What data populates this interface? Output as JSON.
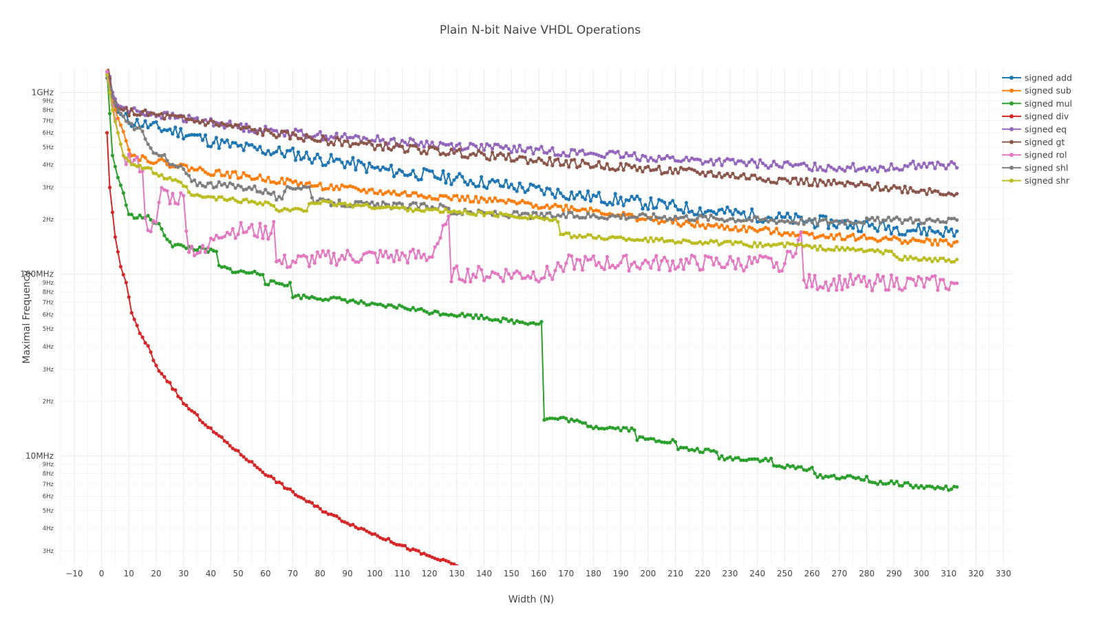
{
  "chart_data": {
    "type": "line",
    "title": "Plain N-bit Naive VHDL Operations",
    "xlabel": "Width (N)",
    "ylabel": "Maximal Frequency",
    "x_range": [
      -15,
      333
    ],
    "y_range_hz": [
      2500000,
      1350000000
    ],
    "y_scale": "log",
    "grid": "on",
    "legend_position": "top-right",
    "x_ticks": [
      "−10",
      "0",
      "10",
      "20",
      "30",
      "40",
      "50",
      "60",
      "70",
      "80",
      "90",
      "100",
      "110",
      "120",
      "130",
      "140",
      "150",
      "160",
      "170",
      "180",
      "190",
      "200",
      "210",
      "220",
      "230",
      "240",
      "250",
      "260",
      "270",
      "280",
      "290",
      "300",
      "310",
      "320",
      "330"
    ],
    "y_ticks": [
      {
        "v": 1000000000,
        "label": "1GHz",
        "major": true
      },
      {
        "v": 900000000,
        "label": "9Hz"
      },
      {
        "v": 800000000,
        "label": "8Hz"
      },
      {
        "v": 700000000,
        "label": "7Hz"
      },
      {
        "v": 600000000,
        "label": "6Hz"
      },
      {
        "v": 500000000,
        "label": "5Hz"
      },
      {
        "v": 400000000,
        "label": "4Hz"
      },
      {
        "v": 300000000,
        "label": "3Hz"
      },
      {
        "v": 200000000,
        "label": "2Hz"
      },
      {
        "v": 100000000,
        "label": "100MHz",
        "major": true
      },
      {
        "v": 90000000,
        "label": "9Hz"
      },
      {
        "v": 80000000,
        "label": "8Hz"
      },
      {
        "v": 70000000,
        "label": "7Hz"
      },
      {
        "v": 60000000,
        "label": "6Hz"
      },
      {
        "v": 50000000,
        "label": "5Hz"
      },
      {
        "v": 40000000,
        "label": "4Hz"
      },
      {
        "v": 30000000,
        "label": "3Hz"
      },
      {
        "v": 20000000,
        "label": "2Hz"
      },
      {
        "v": 10000000,
        "label": "10MHz",
        "major": true
      },
      {
        "v": 9000000,
        "label": "9Hz"
      },
      {
        "v": 8000000,
        "label": "8Hz"
      },
      {
        "v": 7000000,
        "label": "7Hz"
      },
      {
        "v": 6000000,
        "label": "6Hz"
      },
      {
        "v": 5000000,
        "label": "5Hz"
      },
      {
        "v": 4000000,
        "label": "4Hz"
      },
      {
        "v": 3000000,
        "label": "3Hz"
      }
    ],
    "series": [
      {
        "name": "signed add",
        "color": "#1f77b4",
        "noise": 0.035,
        "seed": 11,
        "points": [
          [
            2,
            1500000000
          ],
          [
            4,
            920000000
          ],
          [
            6,
            780000000
          ],
          [
            10,
            700000000
          ],
          [
            20,
            640000000
          ],
          [
            30,
            600000000
          ],
          [
            40,
            540000000
          ],
          [
            50,
            500000000
          ],
          [
            60,
            480000000
          ],
          [
            70,
            460000000
          ],
          [
            80,
            430000000
          ],
          [
            90,
            410000000
          ],
          [
            100,
            380000000
          ],
          [
            120,
            350000000
          ],
          [
            140,
            320000000
          ],
          [
            160,
            290000000
          ],
          [
            180,
            265000000
          ],
          [
            200,
            245000000
          ],
          [
            220,
            225000000
          ],
          [
            240,
            210000000
          ],
          [
            260,
            195000000
          ],
          [
            280,
            185000000
          ],
          [
            300,
            175000000
          ],
          [
            313,
            170000000
          ]
        ]
      },
      {
        "name": "signed sub",
        "color": "#ff7f0e",
        "noise": 0.018,
        "seed": 22,
        "points": [
          [
            2,
            1400000000
          ],
          [
            4,
            900000000
          ],
          [
            6,
            720000000
          ],
          [
            9,
            560000000
          ],
          [
            11,
            450000000
          ],
          [
            20,
            420000000
          ],
          [
            30,
            390000000
          ],
          [
            40,
            365000000
          ],
          [
            50,
            350000000
          ],
          [
            60,
            335000000
          ],
          [
            80,
            305000000
          ],
          [
            100,
            285000000
          ],
          [
            120,
            270000000
          ],
          [
            140,
            255000000
          ],
          [
            160,
            240000000
          ],
          [
            180,
            225000000
          ],
          [
            200,
            200000000
          ],
          [
            220,
            185000000
          ],
          [
            240,
            175000000
          ],
          [
            260,
            165000000
          ],
          [
            280,
            158000000
          ],
          [
            300,
            152000000
          ],
          [
            313,
            148000000
          ]
        ]
      },
      {
        "name": "signed mul",
        "color": "#2ca02c",
        "noise": 0.012,
        "seed": 33,
        "points": [
          [
            2,
            1300000000
          ],
          [
            4,
            450000000
          ],
          [
            6,
            340000000
          ],
          [
            8,
            280000000
          ],
          [
            10,
            210000000
          ],
          [
            17,
            205000000
          ],
          [
            21,
            185000000
          ],
          [
            24,
            158000000
          ],
          [
            26,
            145000000
          ],
          [
            35,
            138000000
          ],
          [
            42,
            132000000
          ],
          [
            43,
            110000000
          ],
          [
            50,
            103000000
          ],
          [
            59,
            101000000
          ],
          [
            60,
            90000000
          ],
          [
            69,
            88000000
          ],
          [
            70,
            76000000
          ],
          [
            80,
            74000000
          ],
          [
            90,
            72000000
          ],
          [
            100,
            67000000
          ],
          [
            110,
            66000000
          ],
          [
            120,
            62000000
          ],
          [
            130,
            60000000
          ],
          [
            140,
            58000000
          ],
          [
            150,
            55000000
          ],
          [
            160,
            54000000
          ],
          [
            161,
            54000000
          ],
          [
            162,
            16000000
          ],
          [
            170,
            16000000
          ],
          [
            180,
            14500000
          ],
          [
            195,
            14000000
          ],
          [
            196,
            12500000
          ],
          [
            210,
            12000000
          ],
          [
            211,
            11000000
          ],
          [
            225,
            10500000
          ],
          [
            226,
            9800000
          ],
          [
            245,
            9500000
          ],
          [
            246,
            8800000
          ],
          [
            260,
            8500000
          ],
          [
            261,
            7800000
          ],
          [
            280,
            7500000
          ],
          [
            281,
            7200000
          ],
          [
            295,
            7000000
          ],
          [
            297,
            6800000
          ],
          [
            313,
            6600000
          ]
        ]
      },
      {
        "name": "signed div",
        "color": "#d62728",
        "noise": 0.008,
        "seed": 44,
        "points": [
          [
            2,
            600000000
          ],
          [
            3,
            300000000
          ],
          [
            5,
            160000000
          ],
          [
            7,
            110000000
          ],
          [
            9,
            90000000
          ],
          [
            11,
            62000000
          ],
          [
            14,
            47000000
          ],
          [
            17,
            40000000
          ],
          [
            20,
            31000000
          ],
          [
            25,
            25000000
          ],
          [
            30,
            19500000
          ],
          [
            40,
            14000000
          ],
          [
            50,
            10500000
          ],
          [
            60,
            8000000
          ],
          [
            70,
            6300000
          ],
          [
            80,
            5100000
          ],
          [
            90,
            4300000
          ],
          [
            100,
            3700000
          ],
          [
            110,
            3200000
          ],
          [
            120,
            2800000
          ],
          [
            130,
            2500000
          ]
        ]
      },
      {
        "name": "signed eq",
        "color": "#9467bd",
        "noise": 0.022,
        "seed": 55,
        "points": [
          [
            2,
            1500000000
          ],
          [
            4,
            1000000000
          ],
          [
            6,
            850000000
          ],
          [
            10,
            800000000
          ],
          [
            20,
            760000000
          ],
          [
            30,
            720000000
          ],
          [
            40,
            690000000
          ],
          [
            50,
            650000000
          ],
          [
            60,
            620000000
          ],
          [
            80,
            580000000
          ],
          [
            100,
            550000000
          ],
          [
            120,
            520000000
          ],
          [
            140,
            500000000
          ],
          [
            160,
            480000000
          ],
          [
            180,
            460000000
          ],
          [
            200,
            440000000
          ],
          [
            220,
            420000000
          ],
          [
            240,
            405000000
          ],
          [
            260,
            390000000
          ],
          [
            280,
            385000000
          ],
          [
            290,
            385000000
          ],
          [
            295,
            400000000
          ],
          [
            313,
            395000000
          ]
        ]
      },
      {
        "name": "signed gt",
        "color": "#8c564b",
        "noise": 0.022,
        "seed": 66,
        "points": [
          [
            2,
            1500000000
          ],
          [
            4,
            950000000
          ],
          [
            6,
            820000000
          ],
          [
            10,
            780000000
          ],
          [
            20,
            750000000
          ],
          [
            30,
            710000000
          ],
          [
            40,
            680000000
          ],
          [
            50,
            640000000
          ],
          [
            60,
            600000000
          ],
          [
            80,
            550000000
          ],
          [
            100,
            510000000
          ],
          [
            120,
            480000000
          ],
          [
            140,
            450000000
          ],
          [
            160,
            420000000
          ],
          [
            180,
            400000000
          ],
          [
            200,
            380000000
          ],
          [
            220,
            360000000
          ],
          [
            240,
            340000000
          ],
          [
            260,
            320000000
          ],
          [
            280,
            305000000
          ],
          [
            300,
            290000000
          ],
          [
            313,
            280000000
          ]
        ]
      },
      {
        "name": "signed rol",
        "color": "#e377c2",
        "noise": 0.045,
        "seed": 77,
        "points": [
          [
            2,
            1300000000
          ],
          [
            4,
            850000000
          ],
          [
            6,
            600000000
          ],
          [
            8,
            450000000
          ],
          [
            12,
            410000000
          ],
          [
            15,
            390000000
          ],
          [
            16,
            190000000
          ],
          [
            20,
            180000000
          ],
          [
            22,
            300000000
          ],
          [
            25,
            265000000
          ],
          [
            30,
            260000000
          ],
          [
            32,
            140000000
          ],
          [
            38,
            130000000
          ],
          [
            42,
            170000000
          ],
          [
            50,
            175000000
          ],
          [
            62,
            170000000
          ],
          [
            63,
            210000000
          ],
          [
            64,
            115000000
          ],
          [
            90,
            125000000
          ],
          [
            120,
            125000000
          ],
          [
            127,
            190000000
          ],
          [
            128,
            100000000
          ],
          [
            165,
            100000000
          ],
          [
            168,
            115000000
          ],
          [
            200,
            115000000
          ],
          [
            250,
            115000000
          ],
          [
            256,
            160000000
          ],
          [
            257,
            90000000
          ],
          [
            290,
            90000000
          ],
          [
            313,
            88000000
          ]
        ]
      },
      {
        "name": "signed shl",
        "color": "#7f7f7f",
        "noise": 0.018,
        "seed": 88,
        "points": [
          [
            2,
            1200000000
          ],
          [
            4,
            950000000
          ],
          [
            6,
            800000000
          ],
          [
            10,
            680000000
          ],
          [
            15,
            600000000
          ],
          [
            17,
            500000000
          ],
          [
            22,
            460000000
          ],
          [
            25,
            400000000
          ],
          [
            30,
            380000000
          ],
          [
            33,
            320000000
          ],
          [
            42,
            310000000
          ],
          [
            55,
            300000000
          ],
          [
            62,
            280000000
          ],
          [
            66,
            250000000
          ],
          [
            68,
            305000000
          ],
          [
            76,
            300000000
          ],
          [
            78,
            250000000
          ],
          [
            100,
            240000000
          ],
          [
            126,
            235000000
          ],
          [
            128,
            220000000
          ],
          [
            160,
            210000000
          ],
          [
            180,
            210000000
          ],
          [
            200,
            208000000
          ],
          [
            220,
            205000000
          ],
          [
            240,
            200000000
          ],
          [
            260,
            195000000
          ],
          [
            280,
            198000000
          ],
          [
            300,
            198000000
          ],
          [
            313,
            195000000
          ]
        ]
      },
      {
        "name": "signed shr",
        "color": "#bcbd22",
        "noise": 0.012,
        "seed": 99,
        "points": [
          [
            2,
            1250000000
          ],
          [
            4,
            800000000
          ],
          [
            6,
            600000000
          ],
          [
            8,
            450000000
          ],
          [
            12,
            400000000
          ],
          [
            17,
            380000000
          ],
          [
            22,
            345000000
          ],
          [
            30,
            310000000
          ],
          [
            33,
            270000000
          ],
          [
            50,
            255000000
          ],
          [
            62,
            245000000
          ],
          [
            64,
            225000000
          ],
          [
            75,
            225000000
          ],
          [
            76,
            250000000
          ],
          [
            100,
            235000000
          ],
          [
            120,
            225000000
          ],
          [
            140,
            215000000
          ],
          [
            160,
            205000000
          ],
          [
            167,
            195000000
          ],
          [
            168,
            165000000
          ],
          [
            180,
            160000000
          ],
          [
            200,
            155000000
          ],
          [
            220,
            150000000
          ],
          [
            240,
            145000000
          ],
          [
            255,
            145000000
          ],
          [
            260,
            140000000
          ],
          [
            280,
            135000000
          ],
          [
            290,
            130000000
          ],
          [
            292,
            123000000
          ],
          [
            313,
            118000000
          ]
        ]
      }
    ]
  }
}
